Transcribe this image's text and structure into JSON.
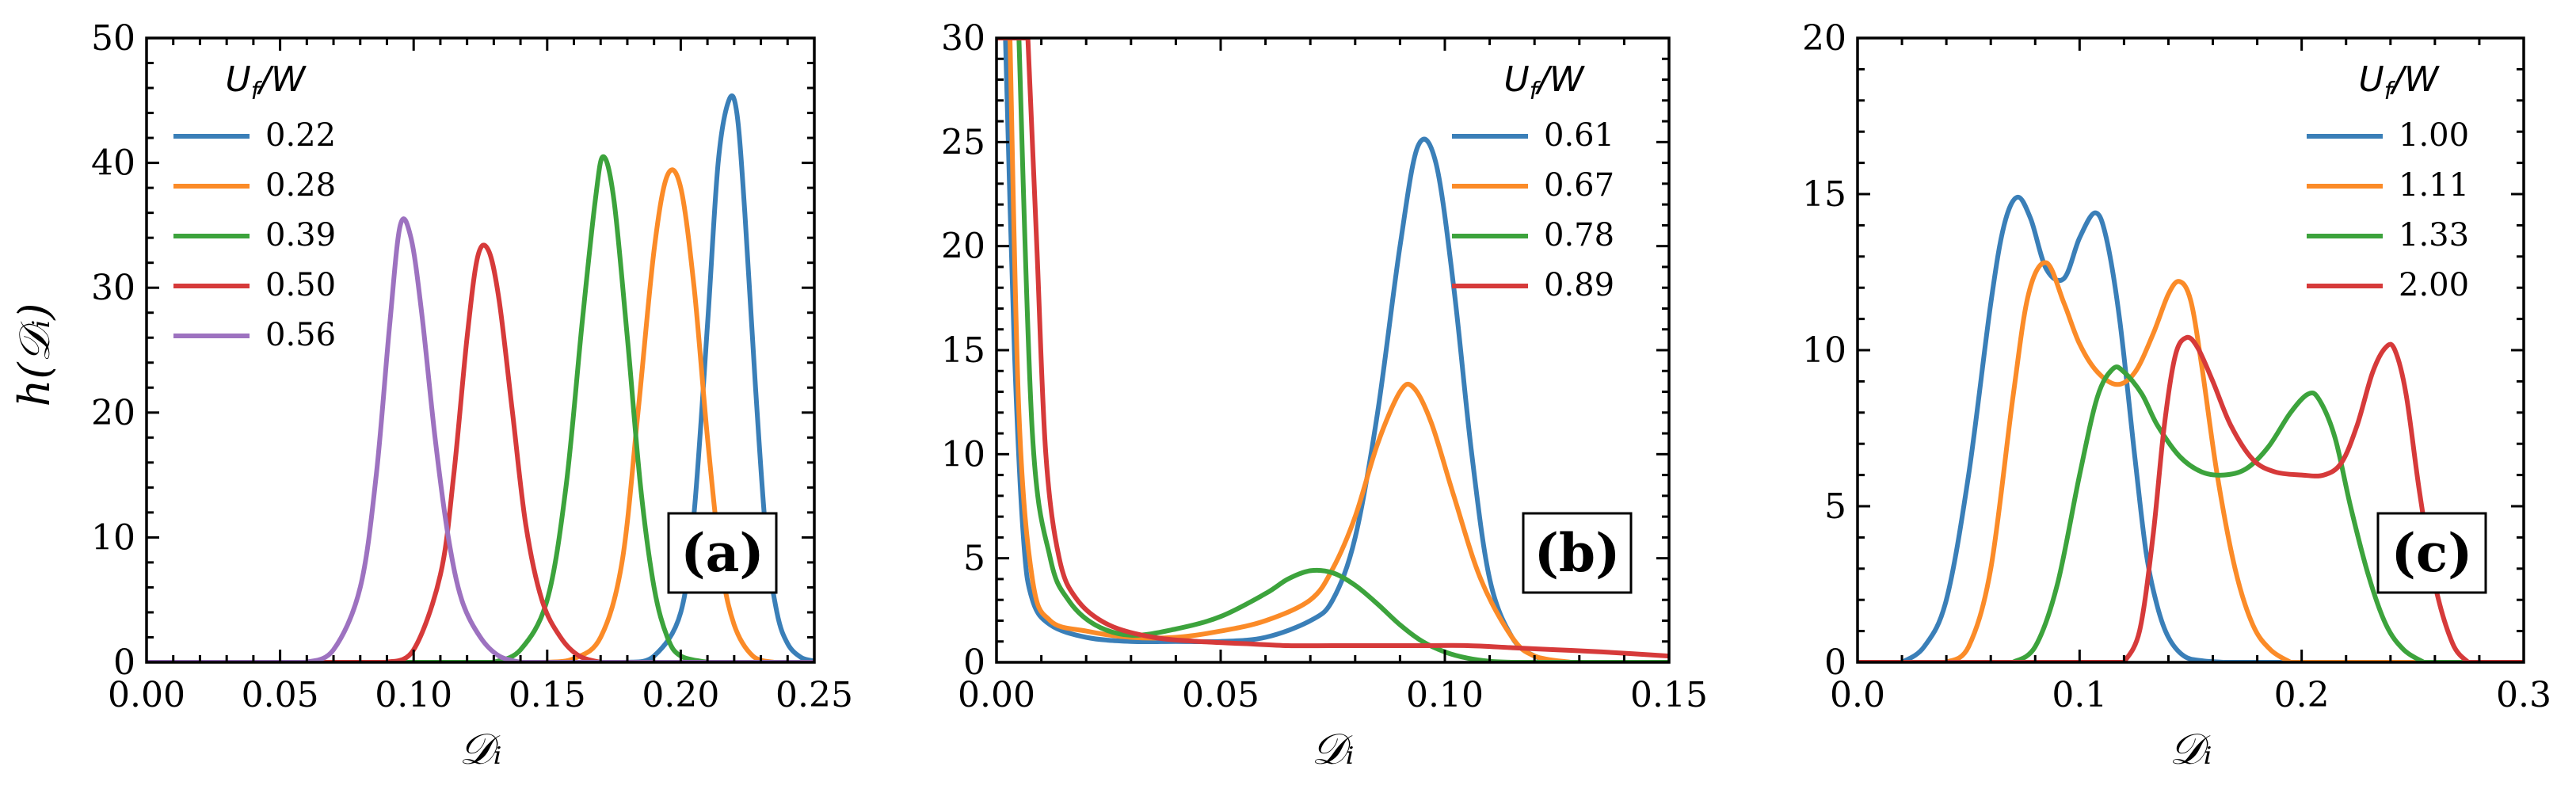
{
  "figure": {
    "ylabel": "h(𝒟ᵢ)",
    "xlabel": "𝒟ᵢ"
  },
  "chart_data": [
    {
      "type": "line",
      "panel_tag": "(a)",
      "xlabel": "𝒟ᵢ",
      "ylabel": "h(𝒟ᵢ)",
      "xlim": [
        0,
        0.25
      ],
      "ylim": [
        0,
        50
      ],
      "xticks": [
        0,
        0.05,
        0.1,
        0.15,
        0.2,
        0.25
      ],
      "xtick_labels": [
        "0.00",
        "0.05",
        "0.10",
        "0.15",
        "0.20",
        "0.25"
      ],
      "yticks": [
        0,
        10,
        20,
        30,
        40,
        50
      ],
      "ytick_labels": [
        "0",
        "10",
        "20",
        "30",
        "40",
        "50"
      ],
      "legend_title": "U_f/W",
      "legend_title_main": "U",
      "legend_title_sub": "f",
      "legend_title_tail": "/W",
      "legend_loc": "top-left",
      "series": [
        {
          "name": "0.22",
          "color": "#3a7fb8",
          "x": [
            0.18,
            0.19,
            0.2,
            0.205,
            0.21,
            0.214,
            0.218,
            0.221,
            0.224,
            0.228,
            0.232,
            0.236,
            0.24,
            0.245,
            0.25
          ],
          "y": [
            0,
            0.5,
            4,
            12,
            27,
            40,
            45,
            44,
            36,
            22,
            10,
            4,
            1.5,
            0.4,
            0.1
          ]
        },
        {
          "name": "0.28",
          "color": "#fb8b28",
          "x": [
            0.15,
            0.16,
            0.17,
            0.178,
            0.184,
            0.19,
            0.195,
            0.2,
            0.205,
            0.21,
            0.215,
            0.22,
            0.227,
            0.235
          ],
          "y": [
            0,
            0.3,
            2,
            8,
            20,
            33,
            39,
            38,
            30,
            18,
            8,
            3,
            0.5,
            0
          ]
        },
        {
          "name": "0.39",
          "color": "#3ca33c",
          "x": [
            0.13,
            0.14,
            0.15,
            0.157,
            0.163,
            0.168,
            0.171,
            0.175,
            0.18,
            0.185,
            0.19,
            0.195,
            0.2,
            0.21
          ],
          "y": [
            0,
            1,
            5,
            14,
            27,
            37,
            40.5,
            37,
            26,
            14,
            6,
            2,
            0.5,
            0
          ]
        },
        {
          "name": "0.50",
          "color": "#d63a3a",
          "x": [
            0.09,
            0.1,
            0.11,
            0.115,
            0.12,
            0.124,
            0.128,
            0.132,
            0.137,
            0.142,
            0.148,
            0.155,
            0.162,
            0.17
          ],
          "y": [
            0,
            1,
            7,
            15,
            26,
            32.5,
            33,
            29,
            20,
            11,
            5,
            2,
            0.5,
            0
          ]
        },
        {
          "name": "0.56",
          "color": "#9d72c0",
          "x": [
            0.06,
            0.07,
            0.08,
            0.086,
            0.091,
            0.095,
            0.099,
            0.103,
            0.108,
            0.113,
            0.118,
            0.125,
            0.132,
            0.14
          ],
          "y": [
            0,
            1,
            6,
            15,
            27,
            35,
            34,
            28,
            18,
            10,
            5,
            2,
            0.5,
            0
          ]
        }
      ]
    },
    {
      "type": "line",
      "panel_tag": "(b)",
      "xlabel": "𝒟ᵢ",
      "xlim": [
        0,
        0.15
      ],
      "ylim": [
        0,
        30
      ],
      "xticks": [
        0,
        0.05,
        0.1,
        0.15
      ],
      "xtick_labels": [
        "0.00",
        "0.05",
        "0.10",
        "0.15"
      ],
      "yticks": [
        0,
        5,
        10,
        15,
        20,
        25,
        30
      ],
      "ytick_labels": [
        "0",
        "5",
        "10",
        "15",
        "20",
        "25",
        "30"
      ],
      "legend_title": "U_f/W",
      "legend_title_main": "U",
      "legend_title_sub": "f",
      "legend_title_tail": "/W",
      "legend_loc": "top-right",
      "series": [
        {
          "name": "0.61",
          "color": "#3a7fb8",
          "x": [
            0.002,
            0.004,
            0.006,
            0.008,
            0.012,
            0.02,
            0.03,
            0.04,
            0.05,
            0.06,
            0.07,
            0.075,
            0.08,
            0.085,
            0.09,
            0.094,
            0.098,
            0.102,
            0.106,
            0.11,
            0.115,
            0.12,
            0.125
          ],
          "y": [
            30,
            15,
            6,
            3,
            1.8,
            1.2,
            1.0,
            1.0,
            1.0,
            1.2,
            2.0,
            3.0,
            6,
            12,
            20,
            24.8,
            24,
            18,
            10,
            4,
            1.2,
            0.3,
            0
          ]
        },
        {
          "name": "0.67",
          "color": "#fb8b28",
          "x": [
            0.003,
            0.005,
            0.008,
            0.012,
            0.02,
            0.03,
            0.04,
            0.05,
            0.06,
            0.07,
            0.075,
            0.08,
            0.085,
            0.09,
            0.093,
            0.097,
            0.102,
            0.108,
            0.115,
            0.12,
            0.128
          ],
          "y": [
            30,
            12,
            4,
            2,
            1.5,
            1.2,
            1.2,
            1.5,
            2,
            3,
            4.5,
            7,
            10.5,
            13,
            13.2,
            11.5,
            8,
            4,
            1.2,
            0.3,
            0
          ]
        },
        {
          "name": "0.78",
          "color": "#3ca33c",
          "x": [
            0.005,
            0.008,
            0.012,
            0.016,
            0.022,
            0.03,
            0.04,
            0.05,
            0.06,
            0.065,
            0.07,
            0.075,
            0.08,
            0.085,
            0.09,
            0.095,
            0.1,
            0.105,
            0.11,
            0.115
          ],
          "y": [
            30,
            11,
            5,
            3,
            1.8,
            1.3,
            1.6,
            2.2,
            3.3,
            4.0,
            4.4,
            4.3,
            3.7,
            2.8,
            1.8,
            1.0,
            0.5,
            0.2,
            0.05,
            0
          ]
        },
        {
          "name": "0.89",
          "color": "#d63a3a",
          "x": [
            0.007,
            0.009,
            0.011,
            0.014,
            0.018,
            0.025,
            0.035,
            0.045,
            0.055,
            0.065,
            0.075,
            0.085,
            0.095,
            0.105,
            0.115,
            0.125,
            0.135,
            0.15
          ],
          "y": [
            30,
            20,
            10,
            5,
            3,
            1.8,
            1.2,
            1.0,
            0.9,
            0.8,
            0.8,
            0.8,
            0.8,
            0.8,
            0.7,
            0.6,
            0.5,
            0.3
          ]
        }
      ]
    },
    {
      "type": "line",
      "panel_tag": "(c)",
      "xlabel": "𝒟ᵢ",
      "xlim": [
        0,
        0.3
      ],
      "ylim": [
        0,
        20
      ],
      "xticks": [
        0,
        0.1,
        0.2,
        0.3
      ],
      "xtick_labels": [
        "0.0",
        "0.1",
        "0.2",
        "0.3"
      ],
      "yticks": [
        0,
        5,
        10,
        15,
        20
      ],
      "ytick_labels": [
        "0",
        "5",
        "10",
        "15",
        "20"
      ],
      "legend_title": "U_f/W",
      "legend_title_main": "U",
      "legend_title_sub": "f",
      "legend_title_tail": "/W",
      "legend_loc": "top-right",
      "series": [
        {
          "name": "1.00",
          "color": "#3a7fb8",
          "x": [
            0.02,
            0.03,
            0.04,
            0.05,
            0.06,
            0.066,
            0.072,
            0.078,
            0.085,
            0.093,
            0.1,
            0.107,
            0.112,
            0.118,
            0.125,
            0.13,
            0.135,
            0.14,
            0.147,
            0.155,
            0.165
          ],
          "y": [
            0,
            0.5,
            2,
            6,
            11.5,
            14,
            14.9,
            14.2,
            12.6,
            12.3,
            13.6,
            14.4,
            13.6,
            11,
            6.5,
            3.5,
            1.8,
            0.8,
            0.2,
            0.05,
            0
          ]
        },
        {
          "name": "1.11",
          "color": "#fb8b28",
          "x": [
            0.04,
            0.05,
            0.06,
            0.07,
            0.077,
            0.085,
            0.093,
            0.1,
            0.108,
            0.117,
            0.125,
            0.133,
            0.14,
            0.145,
            0.15,
            0.155,
            0.162,
            0.17,
            0.178,
            0.186,
            0.195
          ],
          "y": [
            0,
            0.5,
            3,
            8.5,
            11.8,
            12.8,
            11.5,
            10.2,
            9.3,
            8.9,
            9.3,
            10.5,
            11.8,
            12.2,
            11.6,
            9.5,
            6,
            3,
            1.2,
            0.4,
            0
          ]
        },
        {
          "name": "1.33",
          "color": "#3ca33c",
          "x": [
            0.07,
            0.08,
            0.09,
            0.1,
            0.108,
            0.115,
            0.12,
            0.128,
            0.135,
            0.145,
            0.155,
            0.165,
            0.175,
            0.185,
            0.195,
            0.203,
            0.208,
            0.215,
            0.222,
            0.23,
            0.238,
            0.246,
            0.255
          ],
          "y": [
            0,
            0.5,
            2.5,
            6,
            8.5,
            9.4,
            9.3,
            8.6,
            7.6,
            6.6,
            6.1,
            6.0,
            6.2,
            6.9,
            8.0,
            8.6,
            8.4,
            7.2,
            5,
            2.8,
            1.2,
            0.4,
            0
          ]
        },
        {
          "name": "2.00",
          "color": "#d63a3a",
          "x": [
            0.12,
            0.127,
            0.133,
            0.138,
            0.143,
            0.148,
            0.153,
            0.16,
            0.168,
            0.178,
            0.188,
            0.2,
            0.21,
            0.218,
            0.225,
            0.232,
            0.238,
            0.242,
            0.247,
            0.253,
            0.26,
            0.268,
            0.275
          ],
          "y": [
            0,
            1,
            4,
            7.5,
            9.8,
            10.4,
            10.1,
            9,
            7.6,
            6.5,
            6.1,
            6.0,
            6.0,
            6.4,
            7.6,
            9.3,
            10.1,
            10.0,
            8.6,
            5.5,
            2.5,
            0.6,
            0
          ]
        }
      ]
    }
  ]
}
